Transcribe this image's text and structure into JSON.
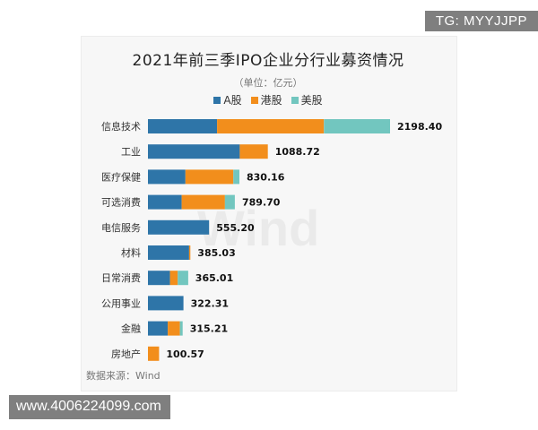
{
  "overlays": {
    "top_right": "TG: MYYJJPP",
    "bottom_left": "www.4006224099.com"
  },
  "watermark": "Wind",
  "chart_data": {
    "type": "bar",
    "orientation": "horizontal",
    "stacked": true,
    "title": "2021年前三季IPO企业分行业募资情况",
    "subtitle": "（单位：亿元）",
    "source": "数据来源：Wind",
    "categories": [
      "信息技术",
      "工业",
      "医疗保健",
      "可选消费",
      "电信服务",
      "材料",
      "日常消费",
      "公用事业",
      "金融",
      "房地产"
    ],
    "totals": [
      "2198.40",
      "1088.72",
      "830.16",
      "789.70",
      "555.20",
      "385.03",
      "365.01",
      "322.31",
      "315.21",
      "100.57"
    ],
    "series": [
      {
        "name": "A股",
        "color": "#2e75a8",
        "values": [
          628,
          834,
          340,
          306,
          555.2,
          374,
          200,
          322.31,
          180,
          0
        ]
      },
      {
        "name": "港股",
        "color": "#f28e1c",
        "values": [
          970,
          254.72,
          435,
          393,
          0,
          11.03,
          70,
          0,
          110,
          100.57
        ]
      },
      {
        "name": "美股",
        "color": "#72c6bf",
        "values": [
          600.4,
          0,
          55.16,
          90.7,
          0,
          0,
          95.01,
          0,
          25.21,
          0
        ]
      }
    ],
    "grid": false,
    "legend_position": "top-center"
  }
}
